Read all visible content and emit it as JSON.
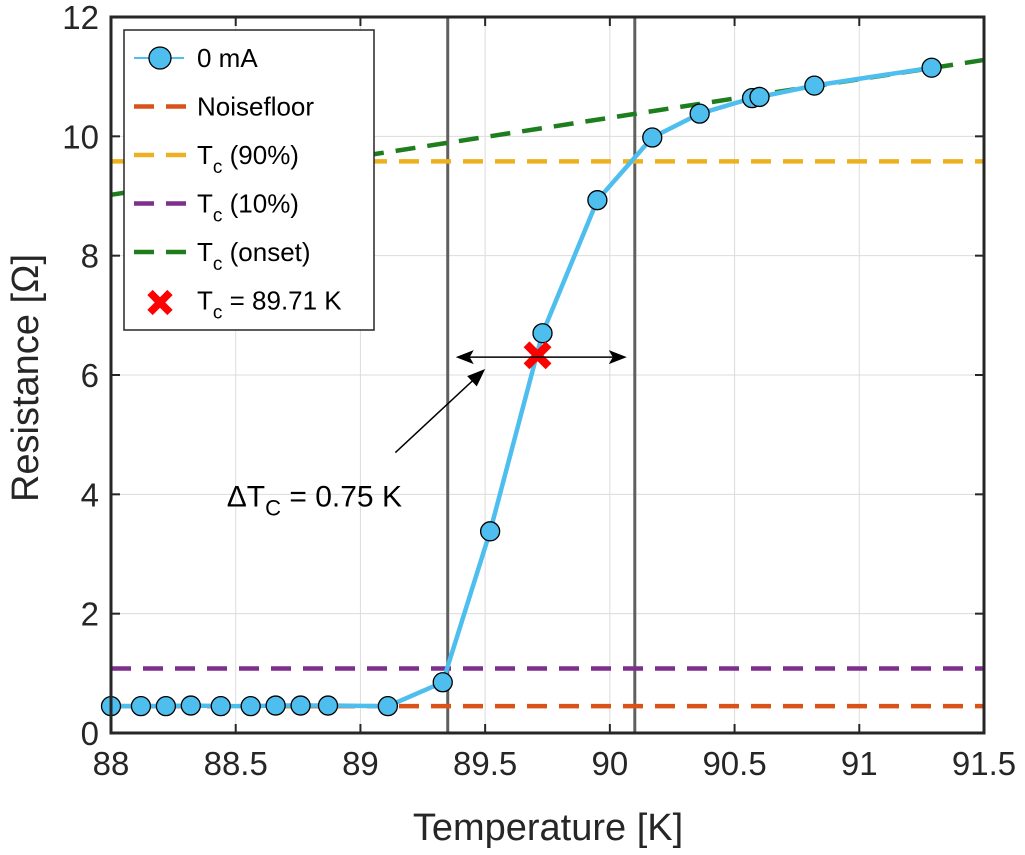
{
  "chart_data": {
    "type": "line",
    "title": "",
    "xlabel": "Temperature [K]",
    "ylabel": "Resistance [Ω]",
    "xlim": [
      88,
      91.5
    ],
    "ylim": [
      0,
      12
    ],
    "x_ticks": [
      "88",
      "88.5",
      "89",
      "89.5",
      "90",
      "90.5",
      "91",
      "91.5"
    ],
    "y_ticks": [
      "0",
      "2",
      "4",
      "6",
      "8",
      "10",
      "12"
    ],
    "grid": true,
    "legend_position": "top-left",
    "series": [
      {
        "name": "0 mA",
        "style": "line-marker",
        "color": "#4DBEEE",
        "x": [
          88.0,
          88.12,
          88.22,
          88.32,
          88.44,
          88.56,
          88.66,
          88.76,
          88.87,
          89.11,
          89.33,
          89.52,
          89.73,
          89.95,
          90.17,
          90.36,
          90.57,
          90.6,
          90.82,
          91.29
        ],
        "y": [
          0.45,
          0.45,
          0.45,
          0.46,
          0.45,
          0.45,
          0.46,
          0.46,
          0.46,
          0.45,
          0.85,
          3.38,
          6.7,
          8.93,
          9.98,
          10.38,
          10.64,
          10.66,
          10.85,
          11.15
        ]
      },
      {
        "name": "Noisefloor",
        "style": "dashed",
        "color": "#D95319",
        "x": [
          88,
          91.5
        ],
        "y": [
          0.45,
          0.45
        ]
      },
      {
        "name": "T",
        "sub": "c",
        "suffix": " (90%)",
        "style": "dashed",
        "color": "#EDB120",
        "x": [
          88,
          91.5
        ],
        "y": [
          9.58,
          9.58
        ]
      },
      {
        "name": "T",
        "sub": "c",
        "suffix": " (10%)",
        "style": "dashed",
        "color": "#7E2F8E",
        "x": [
          88,
          91.5
        ],
        "y": [
          1.08,
          1.08
        ]
      },
      {
        "name": "T",
        "sub": "c",
        "suffix": " (onset)",
        "style": "dashed",
        "color": "#1E7E1E",
        "x": [
          88,
          91.5
        ],
        "y": [
          9.02,
          11.28
        ]
      },
      {
        "name": "T",
        "sub": "c",
        "suffix": " = 89.71 K",
        "style": "marker-x",
        "color": "#FF0000",
        "x": [
          89.71
        ],
        "y": [
          6.33
        ]
      }
    ],
    "vertical_lines": [
      89.35,
      90.1
    ],
    "annotation": {
      "text_main": "ΔT",
      "text_sub": "C",
      "text_rest": " = 0.75 K",
      "x": 88.4,
      "y": 4.2,
      "double_arrow": {
        "x1": 89.35,
        "x2": 90.1,
        "y": 6.3
      },
      "pointer": {
        "from_x": 89.14,
        "from_y": 4.7,
        "to_x": 89.5,
        "to_y": 6.1
      }
    },
    "colors": {
      "axes": "#262626",
      "grid": "#dcdcdc",
      "vline": "#606060"
    }
  }
}
